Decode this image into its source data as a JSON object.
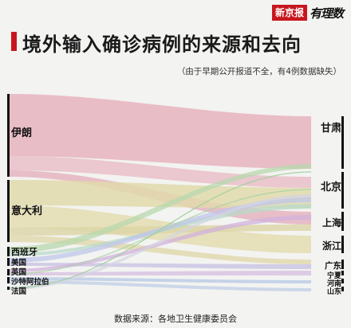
{
  "header": {
    "brand_red": "新京报",
    "brand_script": "有理数",
    "title": "境外输入确诊病例的来源和去向",
    "note": "（由于早期公开报道不全，有4例数据缺失）"
  },
  "diagram": {
    "sources": [
      {
        "label": "伊朗",
        "color": "#e8b4bf"
      },
      {
        "label": "意大利",
        "color": "#e3dcb2"
      },
      {
        "label": "西班牙",
        "color": "#c9ddb9"
      },
      {
        "label": "美国",
        "color": "#c9c3e3"
      },
      {
        "label": "英国",
        "color": "#d4b7dd"
      },
      {
        "label": "沙特阿拉伯",
        "color": "#c2d0e6"
      },
      {
        "label": "法国",
        "color": "#d8d8e2"
      }
    ],
    "destinations": [
      {
        "label": "甘肃"
      },
      {
        "label": "北京"
      },
      {
        "label": "上海"
      },
      {
        "label": "浙江"
      },
      {
        "label": "广东"
      },
      {
        "label": "宁夏"
      },
      {
        "label": "河南"
      },
      {
        "label": "山东"
      }
    ]
  },
  "footer": {
    "source": "数据来源：各地卫生健康委员会"
  }
}
